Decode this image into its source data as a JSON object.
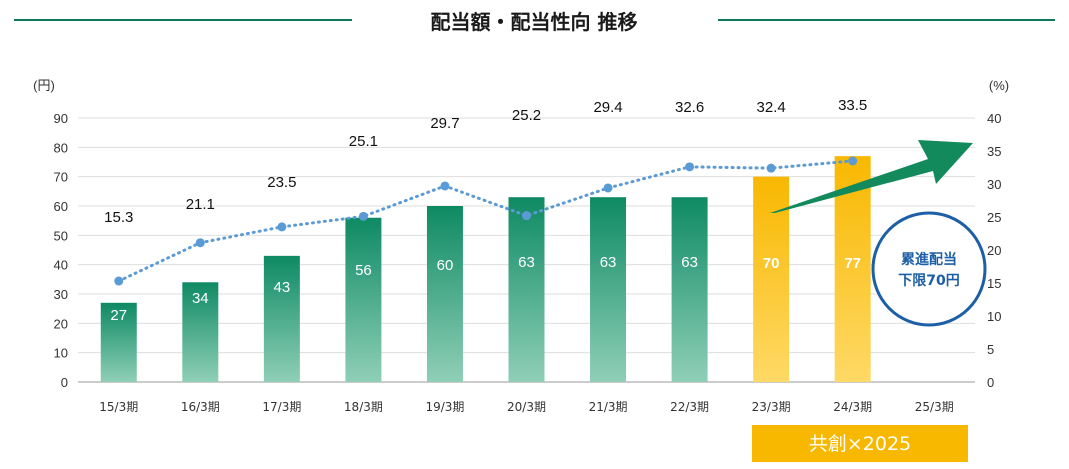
{
  "chart_data": {
    "type": "bar",
    "title": "配当額・配当性向 推移",
    "y_left_unit": "(円)",
    "y_right_unit": "(%)",
    "y_left_ticks": [
      "0",
      "10",
      "20",
      "30",
      "40",
      "50",
      "60",
      "70",
      "80",
      "90"
    ],
    "y_right_ticks": [
      "0",
      "5",
      "10",
      "15",
      "20",
      "25",
      "30",
      "35",
      "40"
    ],
    "ylim_left": [
      0,
      90
    ],
    "ylim_right": [
      0,
      40
    ],
    "categories": [
      "15/3期",
      "16/3期",
      "17/3期",
      "18/3期",
      "19/3期",
      "20/3期",
      "21/3期",
      "22/3期",
      "23/3期",
      "24/3期",
      "25/3期"
    ],
    "series": [
      {
        "type": "bar",
        "axis": "left",
        "values": [
          27,
          34,
          43,
          56,
          60,
          63,
          63,
          63,
          70,
          77,
          null
        ],
        "labels": [
          "27",
          "34",
          "43",
          "56",
          "60",
          "63",
          "63",
          "63",
          "70",
          "77",
          ""
        ]
      },
      {
        "type": "line",
        "axis": "right",
        "style": "dotted",
        "values": [
          15.3,
          21.1,
          23.5,
          25.1,
          29.7,
          25.2,
          29.4,
          32.6,
          32.4,
          33.5,
          null
        ],
        "labels": [
          "15.3",
          "21.1",
          "23.5",
          "25.1",
          "29.7",
          "25.2",
          "29.4",
          "32.6",
          "32.4",
          "33.5",
          ""
        ]
      }
    ],
    "colors": {
      "bar_green": "#0e8a63",
      "bar_green_light": "#8fcfb7",
      "bar_yellow": "#f8b800",
      "bar_yellow_light": "#ffd966",
      "line": "#5b9bd5",
      "header_line": "#0e7a5a",
      "arrow": "#128a5c",
      "badge_border": "#1d5fa6",
      "banner": "#f8b800"
    },
    "annotations": {
      "badge_line1": "累進配当",
      "badge_line2": "下限70円",
      "banner": "共創×2025"
    }
  }
}
